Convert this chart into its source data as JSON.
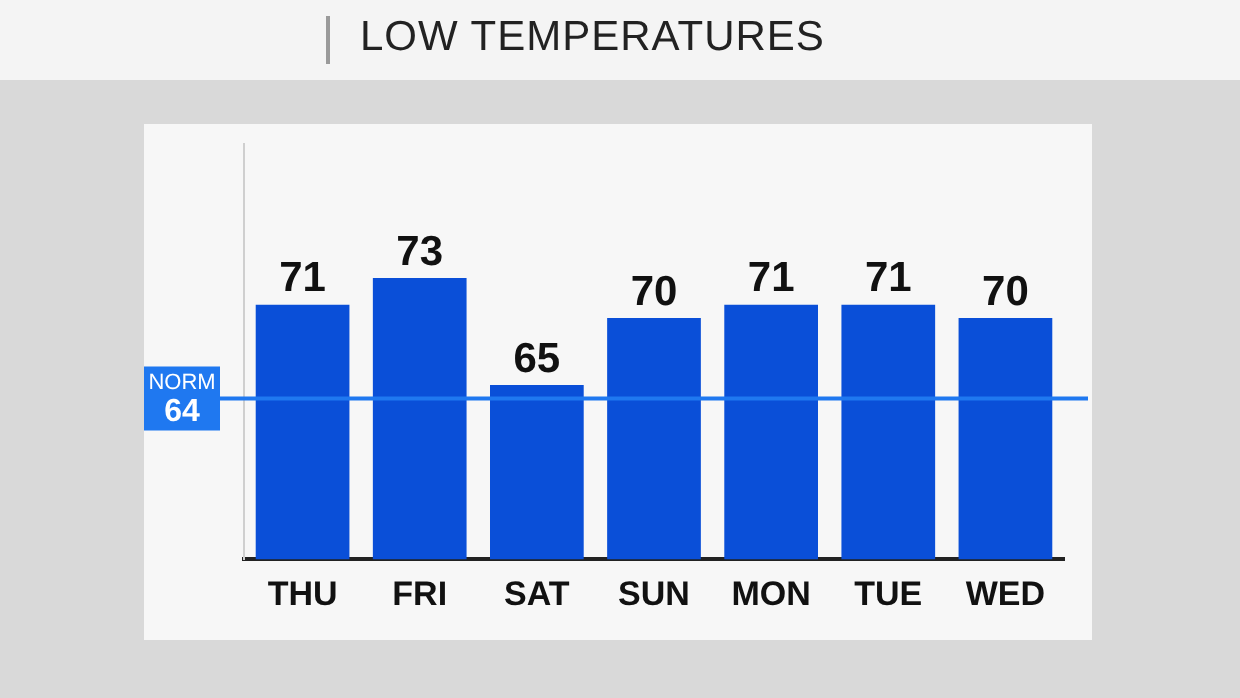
{
  "chart_data": {
    "type": "bar",
    "title": "LOW TEMPERATURES",
    "categories": [
      "THU",
      "FRI",
      "SAT",
      "SUN",
      "MON",
      "TUE",
      "WED"
    ],
    "values": [
      71,
      73,
      65,
      70,
      71,
      71,
      70
    ],
    "color": "#0a4fd8",
    "ylim": [
      52,
      83
    ],
    "data_labels": true,
    "tick_labels": "x",
    "grid": false,
    "ref_lines": [
      {
        "axis": "y",
        "value": 64,
        "label": "NORM 64",
        "color": "#1f78f0"
      }
    ]
  }
}
